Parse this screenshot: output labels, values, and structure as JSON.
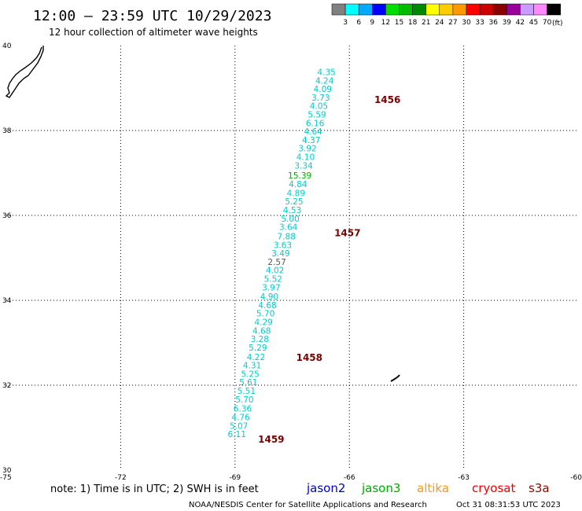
{
  "header": {
    "title": "12:00 — 23:59 UTC 10/29/2023",
    "subtitle": "12 hour collection of altimeter wave heights"
  },
  "colorbar": {
    "unit": "(ft)",
    "swatches": [
      "#808080",
      "#00ffff",
      "#00aaff",
      "#0000ff",
      "#00dd00",
      "#00bb00",
      "#008800",
      "#ffff00",
      "#ffcc00",
      "#ff9900",
      "#ff0000",
      "#cc0000",
      "#880000",
      "#990099",
      "#cc99ff",
      "#ff88ff",
      "#000000"
    ],
    "labels": [
      "3",
      "6",
      "9",
      "12",
      "15",
      "18",
      "21",
      "24",
      "27",
      "30",
      "33",
      "36",
      "39",
      "42",
      "45",
      "70"
    ]
  },
  "map": {
    "lon_range": [
      -75,
      -60
    ],
    "lat_range": [
      30,
      40
    ],
    "lon_ticks": [
      "-75",
      "-72",
      "-69",
      "-66",
      "-63",
      "-60"
    ],
    "lat_ticks": [
      "40",
      "38",
      "36",
      "34",
      "32",
      "30"
    ],
    "grid_lons": [
      -72,
      -69,
      -66,
      -63
    ],
    "grid_lats": [
      38,
      36,
      34,
      32
    ],
    "grid": "dotted"
  },
  "track": {
    "color": "#00cccc",
    "highlight_color": "#00aa00",
    "points": [
      {
        "lon": -66.6,
        "lat": 39.38,
        "swh": "4.35"
      },
      {
        "lon": -66.65,
        "lat": 39.18,
        "swh": "4.24"
      },
      {
        "lon": -66.7,
        "lat": 38.98,
        "swh": "4.09"
      },
      {
        "lon": -66.75,
        "lat": 38.78,
        "swh": "3.73"
      },
      {
        "lon": -66.8,
        "lat": 38.58,
        "swh": "4.05"
      },
      {
        "lon": -66.85,
        "lat": 38.38,
        "swh": "5.59"
      },
      {
        "lon": -66.9,
        "lat": 38.18,
        "swh": "6.16"
      },
      {
        "lon": -66.95,
        "lat": 37.98,
        "swh": "4.64"
      },
      {
        "lon": -67.0,
        "lat": 37.78,
        "swh": "4.37"
      },
      {
        "lon": -67.1,
        "lat": 37.58,
        "swh": "3.92"
      },
      {
        "lon": -67.15,
        "lat": 37.38,
        "swh": "4.10"
      },
      {
        "lon": -67.2,
        "lat": 37.18,
        "swh": "3.34"
      },
      {
        "lon": -67.3,
        "lat": 36.94,
        "swh": "15.39",
        "highlight": true
      },
      {
        "lon": -67.35,
        "lat": 36.74,
        "swh": "4.84"
      },
      {
        "lon": -67.4,
        "lat": 36.53,
        "swh": "4.89"
      },
      {
        "lon": -67.45,
        "lat": 36.33,
        "swh": "5.25"
      },
      {
        "lon": -67.5,
        "lat": 36.13,
        "swh": "4.53"
      },
      {
        "lon": -67.55,
        "lat": 35.93,
        "swh": "5.00"
      },
      {
        "lon": -67.6,
        "lat": 35.73,
        "swh": "3.64"
      },
      {
        "lon": -67.65,
        "lat": 35.51,
        "swh": "7.88"
      },
      {
        "lon": -67.75,
        "lat": 35.31,
        "swh": "3.63"
      },
      {
        "lon": -67.8,
        "lat": 35.11,
        "swh": "3.49"
      },
      {
        "lon": -67.9,
        "lat": 34.91,
        "swh": "2.57",
        "gray": true
      },
      {
        "lon": -67.95,
        "lat": 34.71,
        "swh": "4.02"
      },
      {
        "lon": -68.0,
        "lat": 34.51,
        "swh": "5.52"
      },
      {
        "lon": -68.05,
        "lat": 34.31,
        "swh": "3.97"
      },
      {
        "lon": -68.1,
        "lat": 34.09,
        "swh": "4.90"
      },
      {
        "lon": -68.15,
        "lat": 33.89,
        "swh": "4.68"
      },
      {
        "lon": -68.2,
        "lat": 33.69,
        "swh": "5.70"
      },
      {
        "lon": -68.25,
        "lat": 33.49,
        "swh": "4.29"
      },
      {
        "lon": -68.3,
        "lat": 33.29,
        "swh": "4.68"
      },
      {
        "lon": -68.35,
        "lat": 33.09,
        "swh": "3.28"
      },
      {
        "lon": -68.4,
        "lat": 32.89,
        "swh": "5.29"
      },
      {
        "lon": -68.45,
        "lat": 32.67,
        "swh": "4.22"
      },
      {
        "lon": -68.55,
        "lat": 32.47,
        "swh": "4.31"
      },
      {
        "lon": -68.6,
        "lat": 32.27,
        "swh": "5.25"
      },
      {
        "lon": -68.65,
        "lat": 32.07,
        "swh": "5.61"
      },
      {
        "lon": -68.7,
        "lat": 31.87,
        "swh": "5.51"
      },
      {
        "lon": -68.75,
        "lat": 31.67,
        "swh": "5.70"
      },
      {
        "lon": -68.8,
        "lat": 31.45,
        "swh": "6.36"
      },
      {
        "lon": -68.85,
        "lat": 31.25,
        "swh": "4.76"
      },
      {
        "lon": -68.9,
        "lat": 31.05,
        "swh": "5.07"
      },
      {
        "lon": -68.95,
        "lat": 30.85,
        "swh": "6.11"
      }
    ],
    "pass_labels": [
      {
        "text": "1456",
        "lon": -65.0,
        "lat": 38.72
      },
      {
        "text": "1457",
        "lon": -66.05,
        "lat": 35.58
      },
      {
        "text": "1458",
        "lon": -67.05,
        "lat": 32.65
      },
      {
        "text": "1459",
        "lon": -68.05,
        "lat": 30.72
      }
    ]
  },
  "legend": {
    "note": "note: 1) Time is in UTC; 2) SWH is in feet",
    "satellites": [
      {
        "name": "jason2",
        "color": "#0000cc"
      },
      {
        "name": "jason3",
        "color": "#00aa00"
      },
      {
        "name": "altika",
        "color": "#ff9900"
      },
      {
        "name": "cryosat",
        "color": "#ee0000"
      },
      {
        "name": "s3a",
        "color": "#990000"
      }
    ]
  },
  "footer": {
    "credit": "NOAA/NESDIS Center for Satellite Applications and Research",
    "timestamp": "Oct 31 08:31:53 UTC 2023"
  }
}
